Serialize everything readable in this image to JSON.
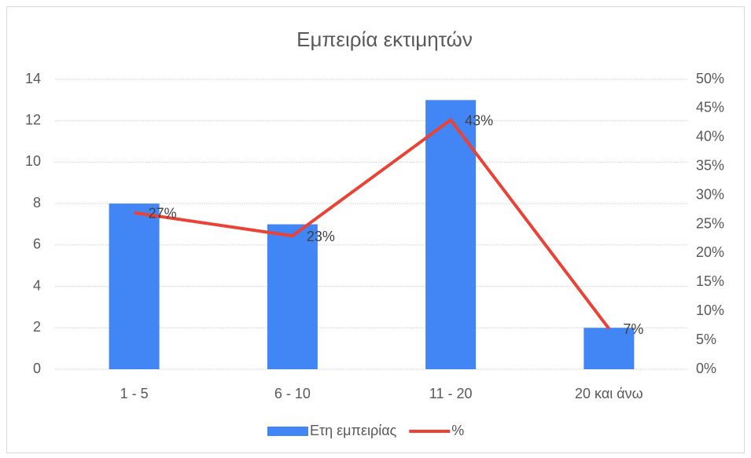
{
  "chart_data": {
    "type": "combo",
    "title": "Εμπειρία εκτιμητών",
    "categories": [
      "1 - 5",
      "6 - 10",
      "11 - 20",
      "20 και άνω"
    ],
    "series": [
      {
        "name": "Ετη εμπειρίας",
        "type": "bar",
        "color": "#4285f4",
        "values": [
          8,
          7,
          13,
          2
        ]
      },
      {
        "name": "%",
        "type": "line",
        "axis": "y2",
        "color": "#ea4335",
        "values": [
          27,
          23,
          43,
          7
        ],
        "value_labels": [
          "27%",
          "23%",
          "43%",
          "7%"
        ]
      }
    ],
    "ylim": [
      0,
      14
    ],
    "yticks": [
      0,
      2,
      4,
      6,
      8,
      10,
      12,
      14
    ],
    "y2lim": [
      0,
      50
    ],
    "y2ticks": [
      {
        "value": 0,
        "label": "0%"
      },
      {
        "value": 5,
        "label": "5%"
      },
      {
        "value": 10,
        "label": "10%"
      },
      {
        "value": 15,
        "label": "15%"
      },
      {
        "value": 20,
        "label": "20%"
      },
      {
        "value": 25,
        "label": "25%"
      },
      {
        "value": 30,
        "label": "30%"
      },
      {
        "value": 35,
        "label": "35%"
      },
      {
        "value": 40,
        "label": "40%"
      },
      {
        "value": 45,
        "label": "45%"
      },
      {
        "value": 50,
        "label": "50%"
      }
    ],
    "grid": true,
    "legend": "bottom"
  }
}
